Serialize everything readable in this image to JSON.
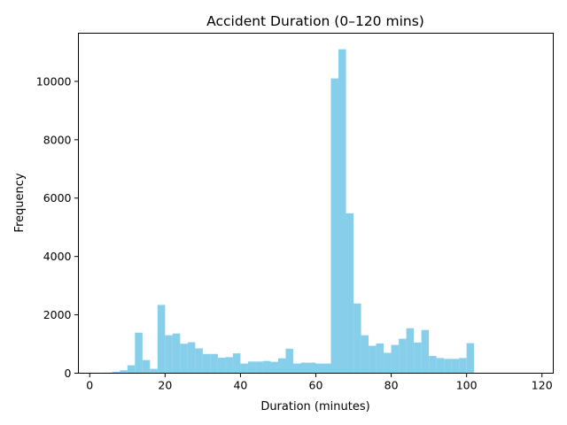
{
  "chart_data": {
    "type": "bar",
    "title": "Accident Duration (0–120 mins)",
    "xlabel": "Duration (minutes)",
    "ylabel": "Frequency",
    "xlim": [
      -3,
      123
    ],
    "ylim": [
      0,
      11650
    ],
    "xticks": [
      0,
      20,
      40,
      60,
      80,
      100,
      120
    ],
    "yticks": [
      0,
      2000,
      4000,
      6000,
      8000,
      10000
    ],
    "bar_color": "#87CEEB",
    "grid": false,
    "legend": "none",
    "bin_width": 2,
    "bins_start": [
      0,
      2,
      4,
      6,
      8,
      10,
      12,
      14,
      16,
      18,
      20,
      22,
      24,
      26,
      28,
      30,
      32,
      34,
      36,
      38,
      40,
      42,
      44,
      46,
      48,
      50,
      52,
      54,
      56,
      58,
      60,
      62,
      64,
      66,
      68,
      70,
      72,
      74,
      76,
      78,
      80,
      82,
      84,
      86,
      88,
      90,
      92,
      94,
      96,
      98,
      100,
      102,
      104,
      106,
      108,
      110,
      112,
      114,
      116,
      118
    ],
    "values": [
      10,
      15,
      20,
      50,
      100,
      270,
      1390,
      450,
      150,
      2340,
      1300,
      1360,
      1010,
      1060,
      850,
      660,
      660,
      530,
      550,
      680,
      330,
      400,
      400,
      420,
      390,
      510,
      840,
      330,
      360,
      360,
      330,
      330,
      10100,
      11100,
      5480,
      2390,
      1300,
      940,
      1020,
      700,
      970,
      1180,
      1540,
      1050,
      1480,
      590,
      520,
      490,
      490,
      520,
      1030,
      0,
      0,
      0,
      0,
      0,
      0,
      0,
      0,
      0
    ]
  }
}
